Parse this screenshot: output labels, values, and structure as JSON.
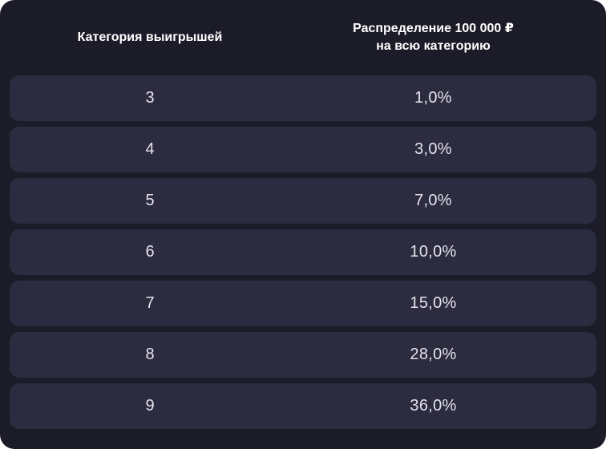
{
  "table": {
    "headers": {
      "category": "Категория выигрышей",
      "distribution_line1": "Распределение 100 000 ₽",
      "distribution_line2": "на всю категорию"
    },
    "columns": [
      "Категория выигрышей",
      "Распределение 100 000 ₽ на всю категорию"
    ],
    "rows": [
      {
        "category": "3",
        "percent": "1,0%"
      },
      {
        "category": "4",
        "percent": "3,0%"
      },
      {
        "category": "5",
        "percent": "7,0%"
      },
      {
        "category": "6",
        "percent": "10,0%"
      },
      {
        "category": "7",
        "percent": "15,0%"
      },
      {
        "category": "8",
        "percent": "28,0%"
      },
      {
        "category": "9",
        "percent": "36,0%"
      }
    ]
  },
  "colors": {
    "panel_background": "#1c1c28",
    "row_background": "#2c2b40",
    "header_text": "#ffffff",
    "cell_text": "#e4e4ec"
  }
}
